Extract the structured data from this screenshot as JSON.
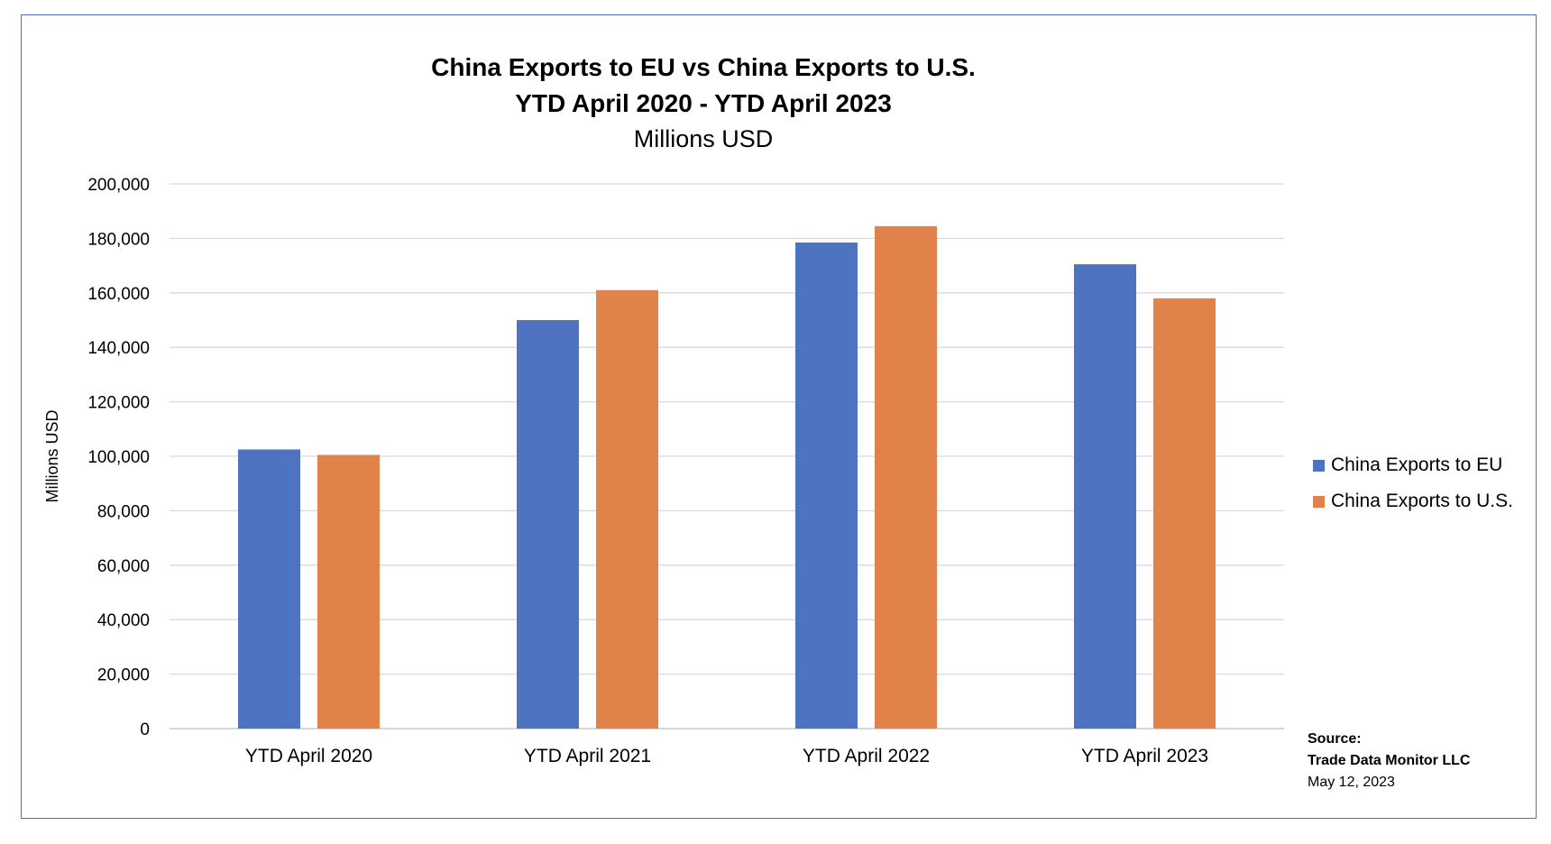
{
  "chart_data": {
    "type": "bar",
    "title": "China Exports to EU vs China Exports to U.S.",
    "subtitle": "YTD April 2020 - YTD April 2023",
    "units_line": "Millions USD",
    "ylabel": "Millions USD",
    "categories": [
      "YTD April 2020",
      "YTD April 2021",
      "YTD April 2022",
      "YTD April 2023"
    ],
    "series": [
      {
        "name": "China Exports to EU",
        "color": "#4e73c0",
        "values": [
          102500,
          150000,
          178500,
          170500
        ]
      },
      {
        "name": "China Exports to U.S.",
        "color": "#e0824a",
        "values": [
          100500,
          161000,
          184500,
          158000
        ]
      }
    ],
    "ylim": [
      0,
      200000
    ],
    "yticks": [
      "0",
      "20,000",
      "40,000",
      "60,000",
      "80,000",
      "100,000",
      "120,000",
      "140,000",
      "160,000",
      "180,000",
      "200,000"
    ],
    "grid": true,
    "legend_position": "right"
  },
  "source": {
    "label": "Source:",
    "org": "Trade Data Monitor LLC",
    "date": "May 12, 2023"
  }
}
